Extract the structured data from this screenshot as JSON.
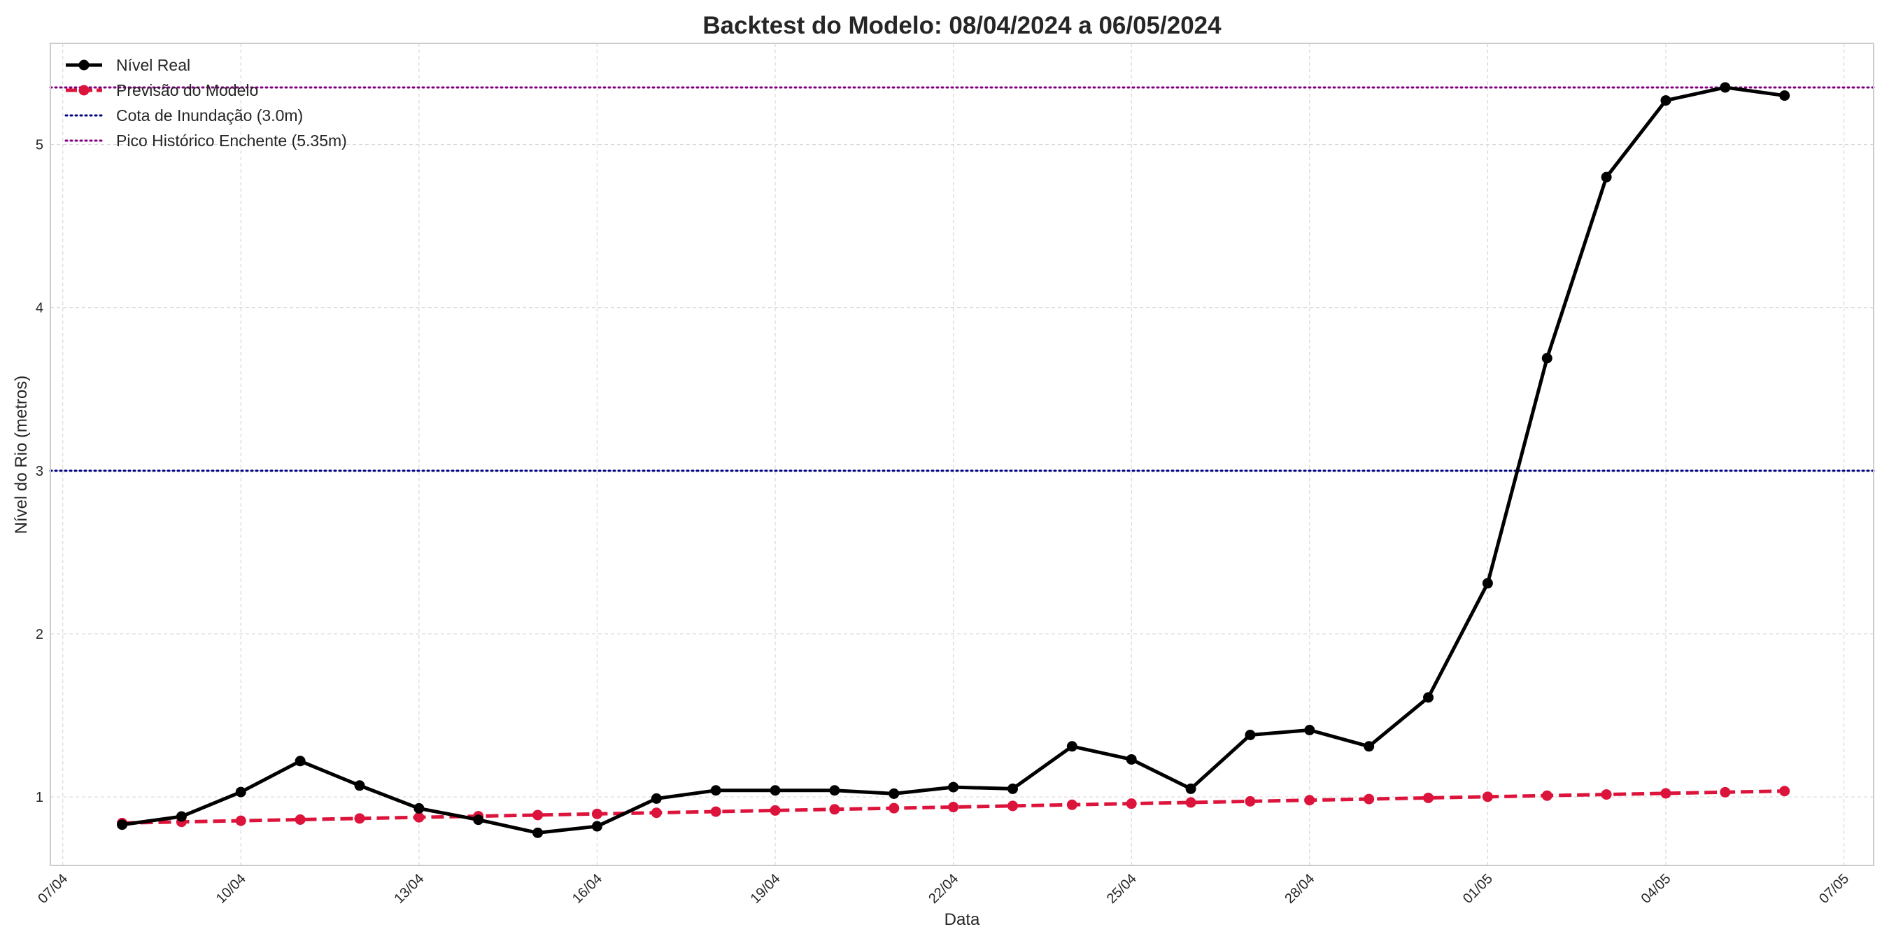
{
  "chart_data": {
    "type": "line",
    "title": "Backtest do Modelo: 08/04/2024 a 06/05/2024",
    "xlabel": "Data",
    "ylabel": "Nível do Rio (metros)",
    "grid": true,
    "legend_position": "top-left",
    "x_range": [
      "2024-04-06T19:00",
      "2024-05-07T12:00"
    ],
    "ylim": [
      0.58,
      5.62
    ],
    "x_ticks": [
      {
        "date": "2024-04-07",
        "label": "07/04"
      },
      {
        "date": "2024-04-10",
        "label": "10/04"
      },
      {
        "date": "2024-04-13",
        "label": "13/04"
      },
      {
        "date": "2024-04-16",
        "label": "16/04"
      },
      {
        "date": "2024-04-19",
        "label": "19/04"
      },
      {
        "date": "2024-04-22",
        "label": "22/04"
      },
      {
        "date": "2024-04-25",
        "label": "25/04"
      },
      {
        "date": "2024-04-28",
        "label": "28/04"
      },
      {
        "date": "2024-05-01",
        "label": "01/05"
      },
      {
        "date": "2024-05-04",
        "label": "04/05"
      },
      {
        "date": "2024-05-07",
        "label": "07/05"
      }
    ],
    "y_ticks": [
      {
        "value": 1,
        "label": "1"
      },
      {
        "value": 2,
        "label": "2"
      },
      {
        "value": 3,
        "label": "3"
      },
      {
        "value": 4,
        "label": "4"
      },
      {
        "value": 5,
        "label": "5"
      }
    ],
    "x": [
      "2024-04-08",
      "2024-04-09",
      "2024-04-10",
      "2024-04-11",
      "2024-04-12",
      "2024-04-13",
      "2024-04-14",
      "2024-04-15",
      "2024-04-16",
      "2024-04-17",
      "2024-04-18",
      "2024-04-19",
      "2024-04-20",
      "2024-04-21",
      "2024-04-22",
      "2024-04-23",
      "2024-04-24",
      "2024-04-25",
      "2024-04-26",
      "2024-04-27",
      "2024-04-28",
      "2024-04-29",
      "2024-04-30",
      "2024-05-01",
      "2024-05-02",
      "2024-05-03",
      "2024-05-04",
      "2024-05-05",
      "2024-05-06"
    ],
    "series": [
      {
        "name": "Nível Real",
        "color": "#000000",
        "style": "solid",
        "marker": "circle",
        "values": [
          0.83,
          0.88,
          1.03,
          1.22,
          1.07,
          0.93,
          0.86,
          0.78,
          0.82,
          0.99,
          1.04,
          1.04,
          1.04,
          1.02,
          1.06,
          1.05,
          1.31,
          1.23,
          1.05,
          1.38,
          1.41,
          1.31,
          1.61,
          2.31,
          3.69,
          4.8,
          5.27,
          5.35,
          5.3
        ]
      },
      {
        "name": "Previsão do Modelo",
        "color": "#dc143c",
        "style": "dashed",
        "marker": "circle",
        "values": [
          0.84,
          0.847,
          0.854,
          0.861,
          0.868,
          0.875,
          0.882,
          0.889,
          0.896,
          0.903,
          0.91,
          0.917,
          0.924,
          0.931,
          0.938,
          0.945,
          0.952,
          0.959,
          0.966,
          0.973,
          0.98,
          0.987,
          0.994,
          1.001,
          1.008,
          1.015,
          1.022,
          1.029,
          1.036
        ]
      }
    ],
    "reference_lines": [
      {
        "name": "Cota de Inundação (3.0m)",
        "value": 3.0,
        "color": "#000080",
        "style": "dotted"
      },
      {
        "name": "Pico Histórico Enchente (5.35m)",
        "value": 5.35,
        "color": "#800080",
        "style": "dotted"
      }
    ]
  }
}
